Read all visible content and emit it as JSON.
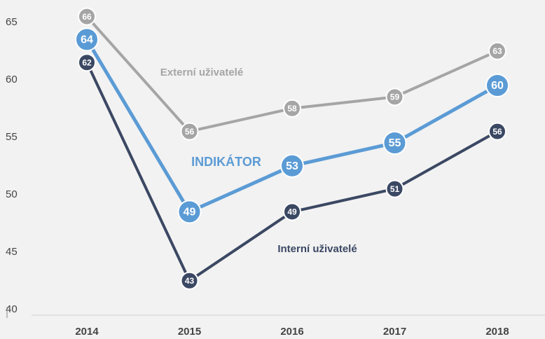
{
  "chart_data": {
    "type": "line",
    "categories": [
      "2014",
      "2015",
      "2016",
      "2017",
      "2018"
    ],
    "series": [
      {
        "name": "Externí uživatelé",
        "color": "#a5a5a5",
        "values": [
          66,
          56,
          58,
          59,
          63
        ]
      },
      {
        "name": "INDIKÁTOR",
        "color": "#5b9bd5",
        "values": [
          64,
          49,
          53,
          55,
          60
        ]
      },
      {
        "name": "Interní uživatelé",
        "color": "#3b4863",
        "values": [
          62,
          43,
          49,
          51,
          56
        ]
      }
    ],
    "ylim": [
      40,
      65
    ],
    "yticks": [
      40,
      45,
      50,
      55,
      60,
      65
    ]
  }
}
